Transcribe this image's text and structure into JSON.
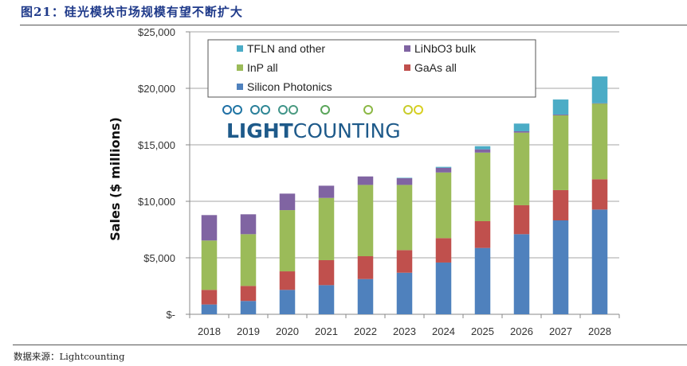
{
  "figure": {
    "title": "图21：硅光模块市场规模有望不断扩大",
    "source": "数据来源：Lightcounting"
  },
  "logo": {
    "text_bold": "LIGHT",
    "text_regular": "COUNTING"
  },
  "chart_data": {
    "type": "bar",
    "stacked": true,
    "title": "",
    "xlabel": "",
    "ylabel": "Sales ($ millions)",
    "ylim": [
      0,
      25000
    ],
    "yticks": [
      0,
      5000,
      10000,
      15000,
      20000,
      25000
    ],
    "ytick_labels": [
      "$-",
      "$5,000",
      "$10,000",
      "$15,000",
      "$20,000",
      "$25,000"
    ],
    "grid": true,
    "legend_position": "top-left-inside",
    "categories": [
      "2018",
      "2019",
      "2020",
      "2021",
      "2022",
      "2023",
      "2024",
      "2025",
      "2026",
      "2027",
      "2028"
    ],
    "series": [
      {
        "name": "Silicon Photonics",
        "color": "#4f81bd",
        "values": [
          870,
          1180,
          2160,
          2580,
          3120,
          3680,
          4580,
          5870,
          7090,
          8310,
          9270
        ]
      },
      {
        "name": "GaAs all",
        "color": "#c0504d",
        "values": [
          1290,
          1330,
          1640,
          2210,
          2020,
          2000,
          2160,
          2370,
          2560,
          2680,
          2680
        ]
      },
      {
        "name": "InP all",
        "color": "#9bbb59",
        "values": [
          4370,
          4580,
          5420,
          5510,
          6310,
          5770,
          5810,
          6070,
          6430,
          6620,
          6710
        ]
      },
      {
        "name": "LiNbO3 bulk",
        "color": "#8064a2",
        "values": [
          2250,
          1760,
          1460,
          1080,
          750,
          590,
          420,
          290,
          120,
          70,
          20
        ]
      },
      {
        "name": "TFLN and other",
        "color": "#4bacc6",
        "values": [
          0,
          0,
          0,
          0,
          0,
          40,
          80,
          280,
          680,
          1330,
          2370
        ]
      }
    ],
    "legend_order": [
      "TFLN and other",
      "LiNbO3 bulk",
      "InP all",
      "GaAs all",
      "Silicon Photonics"
    ]
  }
}
